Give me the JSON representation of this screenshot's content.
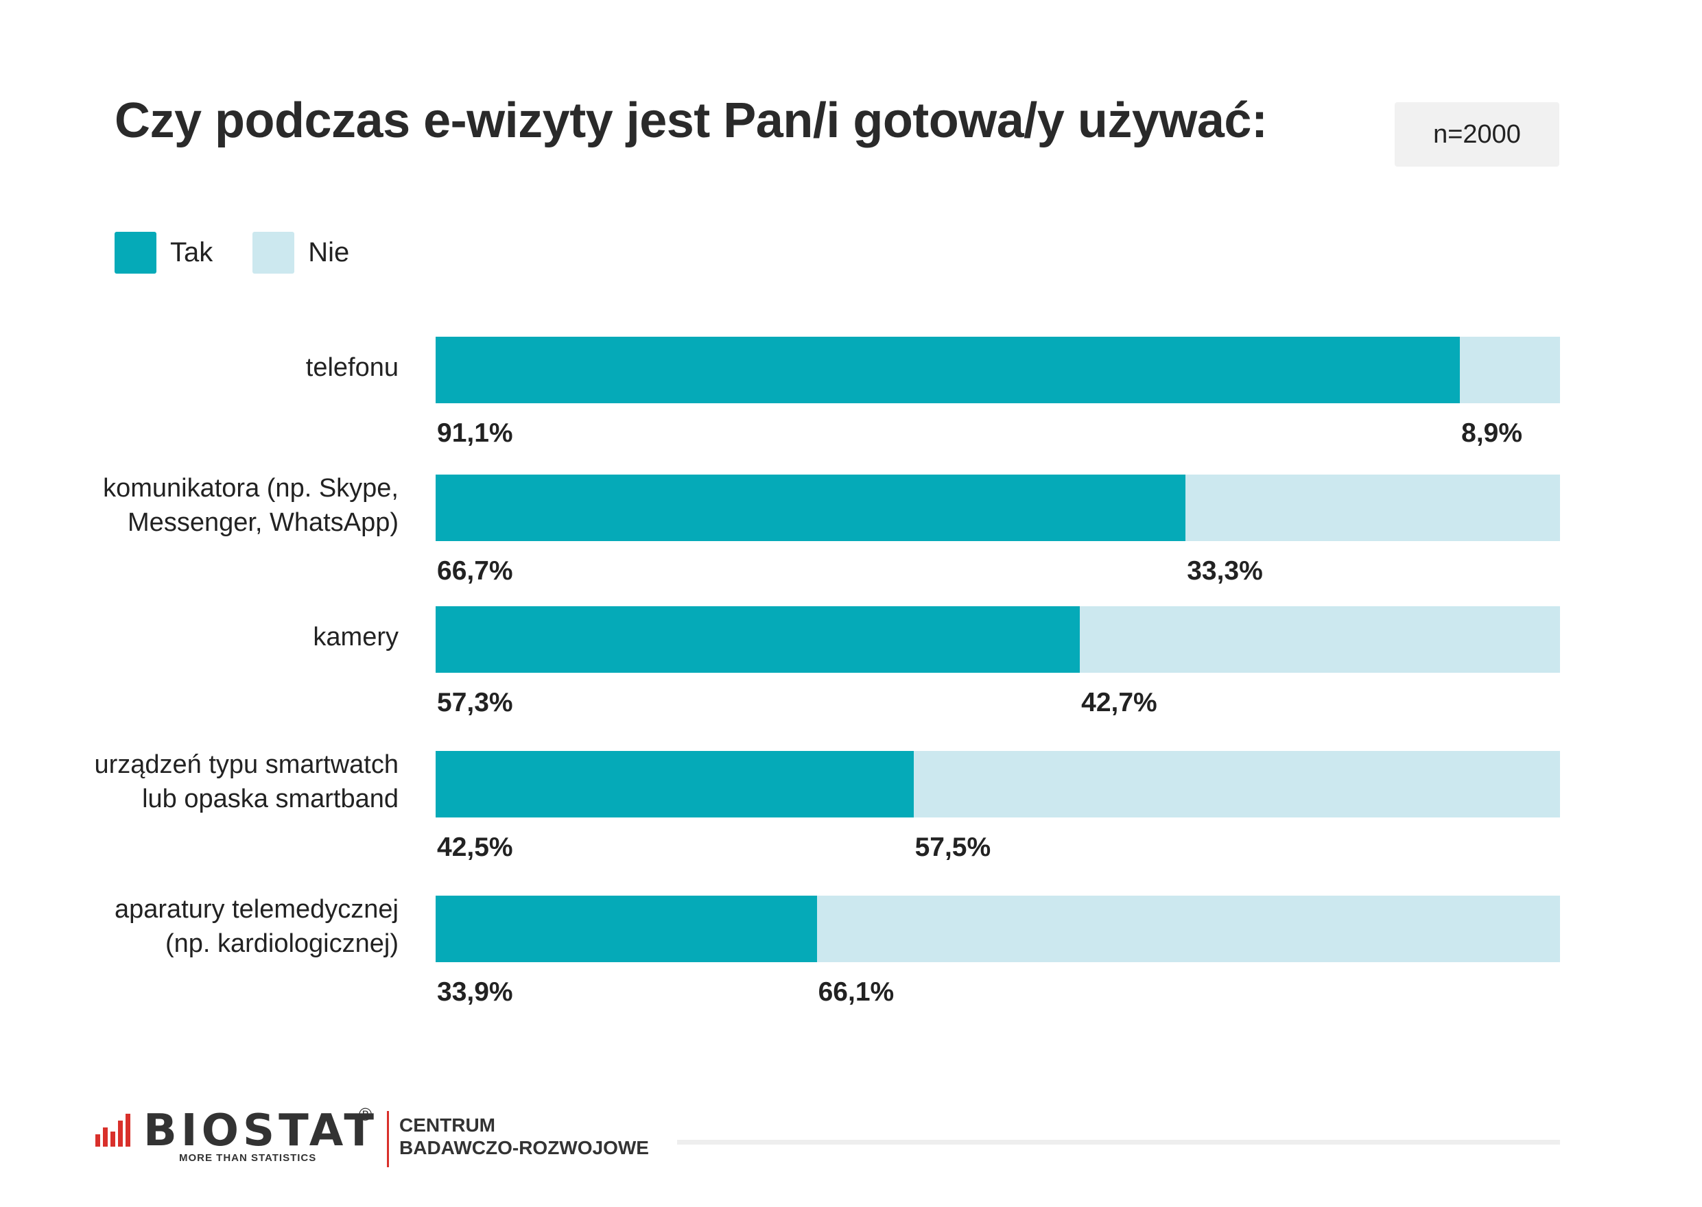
{
  "title": "Czy podczas e-wizyty jest Pan/i gotowa/y używać:",
  "sample": "n=2000",
  "legend": [
    {
      "label": "Tak",
      "color": "#05aab8"
    },
    {
      "label": "Nie",
      "color": "#cce8ef"
    }
  ],
  "chart_data": {
    "type": "bar",
    "orientation": "horizontal",
    "stacked": true,
    "categories": [
      "telefonu",
      "komunikatora (np. Skype,\nMessenger, WhatsApp)",
      "kamery",
      "urządzeń typu smartwatch\nlub opaska smartband",
      "aparatury telemedycznej\n(np. kardiologicznej)"
    ],
    "series": [
      {
        "name": "Tak",
        "color": "#05aab8",
        "values": [
          91.1,
          66.7,
          57.3,
          42.5,
          33.9
        ],
        "labels": [
          "91,1%",
          "66,7%",
          "57,3%",
          "42,5%",
          "33,9%"
        ]
      },
      {
        "name": "Nie",
        "color": "#cce8ef",
        "values": [
          8.9,
          33.3,
          42.7,
          57.5,
          66.1
        ],
        "labels": [
          "8,9%",
          "33,3%",
          "42,7%",
          "57,5%",
          "66,1%"
        ]
      }
    ],
    "xlim": [
      0,
      100
    ]
  },
  "footer": {
    "logo": "BIOSTAT",
    "registered": "®",
    "tagline": "MORE THAN STATISTICS",
    "centre_line1": "CENTRUM",
    "centre_line2": "BADAWCZO-ROZWOJOWE",
    "accent": "#d9302b"
  }
}
